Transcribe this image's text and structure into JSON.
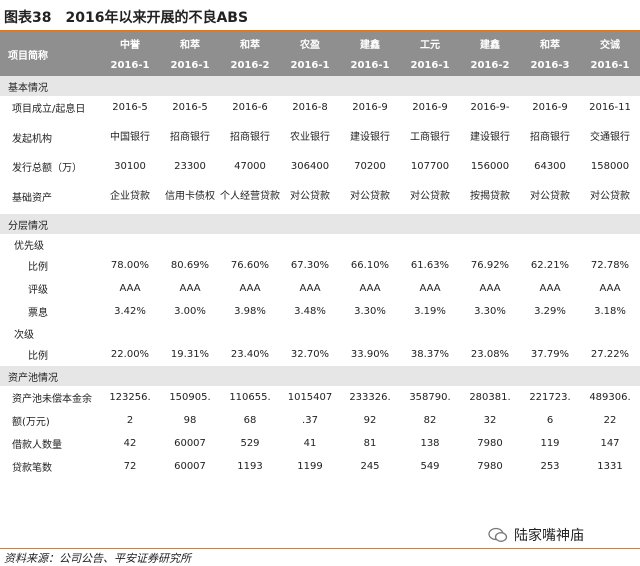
{
  "title": {
    "figure_no": "图表38",
    "text": "2016年以来开展的不良ABS"
  },
  "header": {
    "row_label": "项目简称",
    "columns": [
      {
        "bank": "中誉",
        "tranche": "2016-1"
      },
      {
        "bank": "和萃",
        "tranche": "2016-1"
      },
      {
        "bank": "和萃",
        "tranche": "2016-2"
      },
      {
        "bank": "农盈",
        "tranche": "2016-1"
      },
      {
        "bank": "建鑫",
        "tranche": "2016-1"
      },
      {
        "bank": "工元",
        "tranche": "2016-1"
      },
      {
        "bank": "建鑫",
        "tranche": "2016-2"
      },
      {
        "bank": "和萃",
        "tranche": "2016-3"
      },
      {
        "bank": "交诚",
        "tranche": "2016-1"
      }
    ]
  },
  "sections": {
    "basic": "基本情况",
    "tranche": "分层情况",
    "senior": "优先级",
    "junior": "次级",
    "pool": "资产池情况"
  },
  "rows": {
    "established": {
      "label": "项目成立/起息日",
      "values": [
        "2016-5",
        "2016-5",
        "2016-6",
        "2016-8",
        "2016-9",
        "2016-9",
        "2016-9-",
        "2016-9",
        "2016-11"
      ]
    },
    "issuer": {
      "label": "发起机构",
      "values": [
        "中国银行",
        "招商银行",
        "招商银行",
        "农业银行",
        "建设银行",
        "工商银行",
        "建设银行",
        "招商银行",
        "交通银行"
      ]
    },
    "size": {
      "label": "发行总额（万）",
      "values": [
        "30100",
        "23300",
        "47000",
        "306400",
        "70200",
        "107700",
        "156000",
        "64300",
        "158000"
      ]
    },
    "underlying": {
      "label": "基础资产",
      "values": [
        "企业贷款",
        "信用卡债权",
        "个人经营贷款",
        "对公贷款",
        "对公贷款",
        "对公贷款",
        "按揭贷款",
        "对公贷款",
        "对公贷款"
      ]
    },
    "senior_ratio": {
      "label": "比例",
      "values": [
        "78.00%",
        "80.69%",
        "76.60%",
        "67.30%",
        "66.10%",
        "61.63%",
        "76.92%",
        "62.21%",
        "72.78%"
      ]
    },
    "rating": {
      "label": "评级",
      "values": [
        "AAA",
        "AAA",
        "AAA",
        "AAA",
        "AAA",
        "AAA",
        "AAA",
        "AAA",
        "AAA"
      ]
    },
    "coupon": {
      "label": "票息",
      "values": [
        "3.42%",
        "3.00%",
        "3.98%",
        "3.48%",
        "3.30%",
        "3.19%",
        "3.30%",
        "3.29%",
        "3.18%"
      ]
    },
    "junior_ratio": {
      "label": "比例",
      "values": [
        "22.00%",
        "19.31%",
        "23.40%",
        "32.70%",
        "33.90%",
        "38.37%",
        "23.08%",
        "37.79%",
        "27.22%"
      ]
    },
    "outstanding_a": {
      "label": "资产池未偿本金余",
      "values": [
        "123256.",
        "150905.",
        "110655.",
        "1015407",
        "233326.",
        "358790.",
        "280381.",
        "221723.",
        "489306."
      ]
    },
    "outstanding_b": {
      "label": "额(万元)",
      "values": [
        "2",
        "98",
        "68",
        ".37",
        "92",
        "82",
        "32",
        "6",
        "22"
      ]
    },
    "borrowers": {
      "label": "借款人数量",
      "values": [
        "42",
        "60007",
        "529",
        "41",
        "81",
        "138",
        "7980",
        "119",
        "147"
      ]
    },
    "loans": {
      "label": "贷款笔数",
      "values": [
        "72",
        "60007",
        "1193",
        "1199",
        "245",
        "549",
        "7980",
        "253",
        "1331"
      ]
    }
  },
  "watermark": "陆家嘴神庙",
  "source": "资料来源：公司公告、平安证券研究所",
  "colors": {
    "accent": "#e07a1f",
    "header_bg": "#8f8f8f",
    "section_bg": "#e6e6e6"
  }
}
